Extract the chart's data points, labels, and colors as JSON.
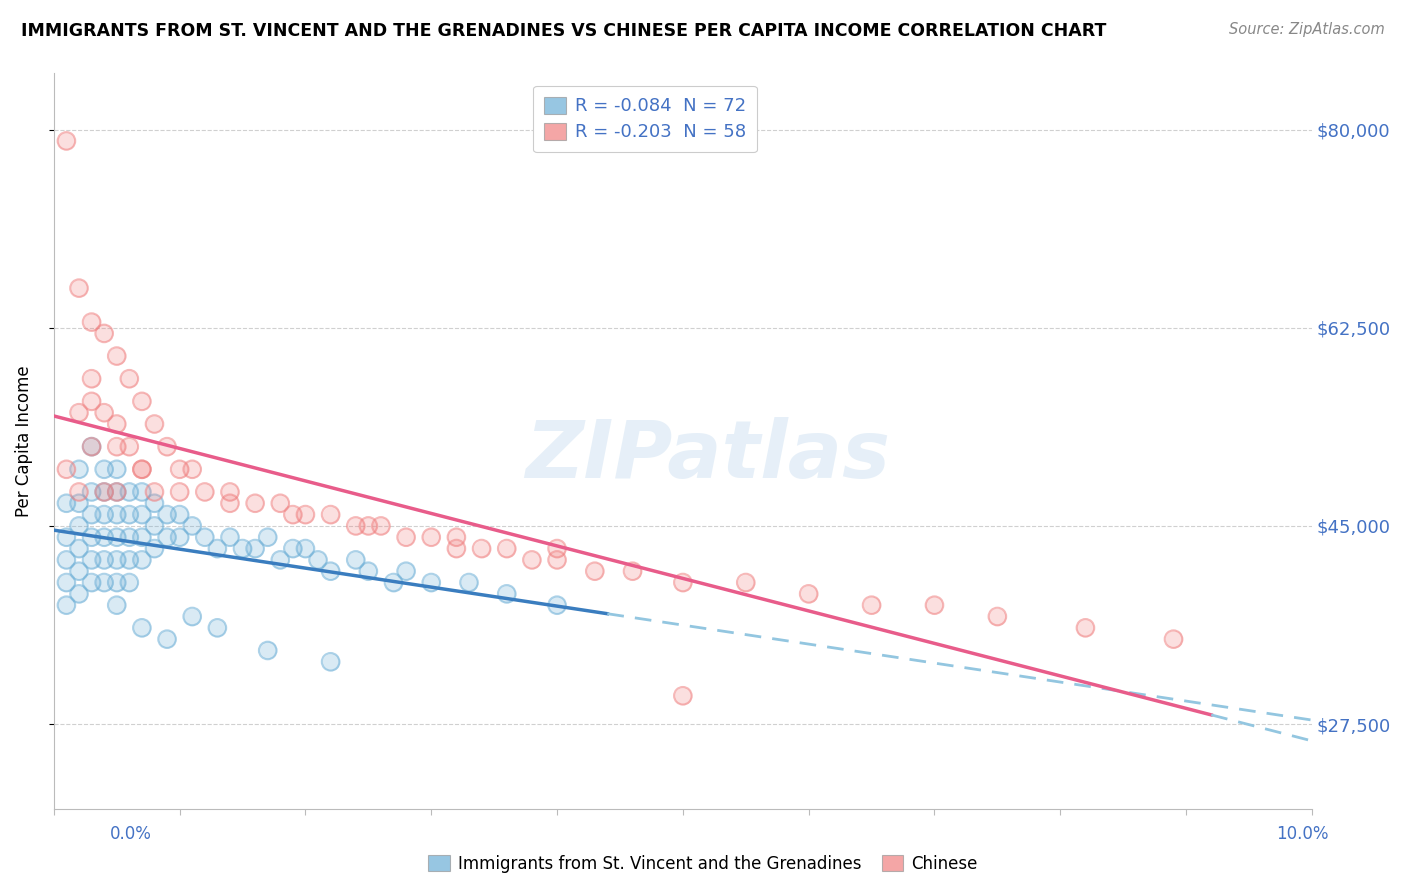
{
  "title": "IMMIGRANTS FROM ST. VINCENT AND THE GRENADINES VS CHINESE PER CAPITA INCOME CORRELATION CHART",
  "source": "Source: ZipAtlas.com",
  "ylabel": "Per Capita Income",
  "yticks": [
    27500,
    45000,
    62500,
    80000
  ],
  "ytick_labels": [
    "$27,500",
    "$45,000",
    "$62,500",
    "$80,000"
  ],
  "xlim": [
    0.0,
    0.1
  ],
  "ylim": [
    20000,
    85000
  ],
  "legend_series1_label": "R = -0.084  N = 72",
  "legend_series2_label": "R = -0.203  N = 58",
  "series1_color": "#6baed6",
  "series2_color": "#f08080",
  "series1_line_color": "#3a7dbf",
  "series2_line_color": "#e85c8a",
  "series1_dash_color": "#93c6e0",
  "series2_dash_color": "#93c6e0",
  "watermark": "ZIPatlas",
  "series1_R": -0.084,
  "series2_R": -0.203,
  "series1_x": [
    0.001,
    0.001,
    0.001,
    0.001,
    0.001,
    0.002,
    0.002,
    0.002,
    0.002,
    0.002,
    0.002,
    0.003,
    0.003,
    0.003,
    0.003,
    0.003,
    0.003,
    0.004,
    0.004,
    0.004,
    0.004,
    0.004,
    0.004,
    0.005,
    0.005,
    0.005,
    0.005,
    0.005,
    0.005,
    0.005,
    0.006,
    0.006,
    0.006,
    0.006,
    0.006,
    0.007,
    0.007,
    0.007,
    0.007,
    0.008,
    0.008,
    0.008,
    0.009,
    0.009,
    0.01,
    0.01,
    0.011,
    0.012,
    0.013,
    0.014,
    0.015,
    0.016,
    0.017,
    0.018,
    0.019,
    0.02,
    0.021,
    0.022,
    0.024,
    0.025,
    0.027,
    0.028,
    0.03,
    0.033,
    0.036,
    0.04,
    0.007,
    0.009,
    0.011,
    0.013,
    0.017,
    0.022
  ],
  "series1_y": [
    47000,
    44000,
    42000,
    40000,
    38000,
    50000,
    47000,
    45000,
    43000,
    41000,
    39000,
    52000,
    48000,
    46000,
    44000,
    42000,
    40000,
    50000,
    48000,
    46000,
    44000,
    42000,
    40000,
    50000,
    48000,
    46000,
    44000,
    42000,
    40000,
    38000,
    48000,
    46000,
    44000,
    42000,
    40000,
    48000,
    46000,
    44000,
    42000,
    47000,
    45000,
    43000,
    46000,
    44000,
    46000,
    44000,
    45000,
    44000,
    43000,
    44000,
    43000,
    43000,
    44000,
    42000,
    43000,
    43000,
    42000,
    41000,
    42000,
    41000,
    40000,
    41000,
    40000,
    40000,
    39000,
    38000,
    36000,
    35000,
    37000,
    36000,
    34000,
    33000
  ],
  "series2_x": [
    0.001,
    0.001,
    0.002,
    0.002,
    0.002,
    0.003,
    0.003,
    0.003,
    0.004,
    0.004,
    0.004,
    0.005,
    0.005,
    0.005,
    0.006,
    0.006,
    0.007,
    0.007,
    0.008,
    0.008,
    0.009,
    0.01,
    0.011,
    0.012,
    0.014,
    0.016,
    0.018,
    0.02,
    0.022,
    0.024,
    0.026,
    0.028,
    0.03,
    0.032,
    0.034,
    0.036,
    0.038,
    0.04,
    0.043,
    0.046,
    0.05,
    0.055,
    0.06,
    0.065,
    0.07,
    0.075,
    0.082,
    0.089,
    0.003,
    0.005,
    0.007,
    0.01,
    0.014,
    0.019,
    0.025,
    0.032,
    0.04,
    0.05
  ],
  "series2_y": [
    79000,
    50000,
    66000,
    55000,
    48000,
    63000,
    58000,
    52000,
    62000,
    55000,
    48000,
    60000,
    54000,
    48000,
    58000,
    52000,
    56000,
    50000,
    54000,
    48000,
    52000,
    50000,
    50000,
    48000,
    48000,
    47000,
    47000,
    46000,
    46000,
    45000,
    45000,
    44000,
    44000,
    43000,
    43000,
    43000,
    42000,
    42000,
    41000,
    41000,
    40000,
    40000,
    39000,
    38000,
    38000,
    37000,
    36000,
    35000,
    56000,
    52000,
    50000,
    48000,
    47000,
    46000,
    45000,
    44000,
    43000,
    30000
  ]
}
